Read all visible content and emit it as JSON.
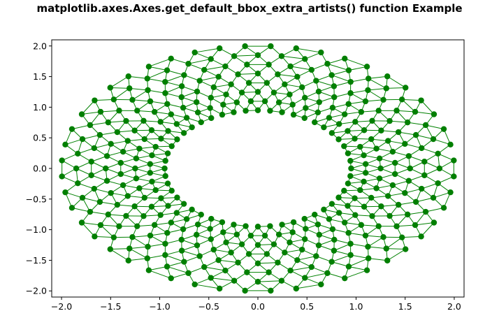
{
  "chart_data": {
    "type": "line",
    "title": "matplotlib.axes.Axes.get_default_bbox_extra_artists() function Example",
    "xlabel": "",
    "ylabel": "",
    "xlim": [
      -2.1,
      2.1
    ],
    "ylim": [
      -2.1,
      2.1
    ],
    "x_ticks": [
      -2.0,
      -1.5,
      -1.0,
      -0.5,
      0.0,
      0.5,
      1.0,
      1.5,
      2.0
    ],
    "x_tick_labels": [
      "−2.0",
      "−1.5",
      "−1.0",
      "−0.5",
      "0.0",
      "0.5",
      "1.0",
      "1.5",
      "2.0"
    ],
    "y_ticks": [
      2.0,
      1.5,
      1.0,
      0.5,
      0.0,
      -0.5,
      -1.0,
      -1.5,
      -2.0
    ],
    "y_tick_labels": [
      "2.0",
      "1.5",
      "1.0",
      "0.5",
      "0.0",
      "−0.5",
      "−1.0",
      "−1.5",
      "−2.0"
    ],
    "grid": false,
    "marker": "o",
    "series": [
      {
        "color": "#008000",
        "radii": [
          0.95,
          1.1,
          1.25,
          1.4,
          1.55,
          1.7,
          1.85,
          2.0
        ],
        "angles_per_ring": 48,
        "note_angles": "angles evenly spaced, alternate rings offset by half step"
      }
    ]
  },
  "colors": {
    "series": "#008000",
    "marker": "#007f00",
    "axes": "#000000",
    "background": "#ffffff"
  }
}
